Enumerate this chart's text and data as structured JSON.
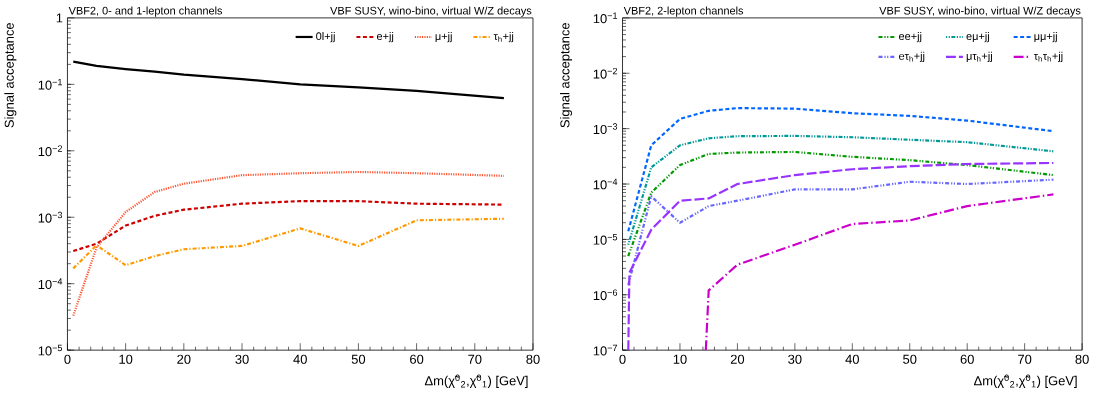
{
  "chart_data": [
    {
      "type": "line",
      "title": "VBF2, 0- and 1-lepton channels",
      "subtitle": "VBF SUSY, wino-bino, virtual W/Z decays",
      "xlabel": "Δm(χ̃$^{0}$$_{2}$,χ̃$^{0}$$_{1}$) [GeV]",
      "ylabel": "Signal acceptance",
      "log": "y",
      "legend": "top right",
      "xlim": [
        0,
        80
      ],
      "ylim": [
        1e-05,
        1
      ],
      "xticks": [
        0,
        10,
        20,
        30,
        40,
        50,
        60,
        70,
        80
      ],
      "yticks": [
        {
          "value": 1e-05,
          "label": "10$^{−5}$"
        },
        {
          "value": 0.0001,
          "label": "10$^{−4}$"
        },
        {
          "value": 0.001,
          "label": "10$^{−3}$"
        },
        {
          "value": 0.01,
          "label": "10$^{−2}$"
        },
        {
          "value": 0.1,
          "label": "10$^{−1}$"
        },
        1
      ],
      "x": [
        1,
        5,
        10,
        15,
        20,
        30,
        40,
        50,
        60,
        75
      ],
      "series": [
        {
          "name": "0l+jj",
          "color": "#000000",
          "line_style": "solid",
          "values": [
            0.22,
            0.19,
            0.17,
            0.155,
            0.14,
            0.12,
            0.1,
            0.09,
            0.08,
            0.062
          ]
        },
        {
          "name": "e+jj",
          "color": "#cc0000",
          "line_style": "dashed",
          "values": [
            0.00031,
            0.0004,
            0.00075,
            0.00105,
            0.0013,
            0.0016,
            0.00175,
            0.00175,
            0.0016,
            0.00155
          ]
        },
        {
          "name": "μ+jj",
          "color": "#ff5533",
          "line_style": "dotted",
          "values": [
            3.3e-05,
            0.00035,
            0.0012,
            0.0024,
            0.0032,
            0.0043,
            0.0046,
            0.0048,
            0.0046,
            0.0042
          ]
        },
        {
          "name": "τ$_{h}$+jj",
          "color": "#ff9900",
          "line_style": "dashdot",
          "values": [
            0.00017,
            0.00038,
            0.00019,
            0.00026,
            0.00033,
            0.00037,
            0.00068,
            0.00037,
            0.0009,
            0.00095
          ]
        }
      ]
    },
    {
      "type": "line",
      "title": "VBF2, 2-lepton channels",
      "subtitle": "VBF SUSY, wino-bino, virtual W/Z decays",
      "xlabel": "Δm(χ̃$^{0}$$_{2}$,χ̃$^{0}$$_{1}$) [GeV]",
      "ylabel": "Signal acceptance",
      "log": "y",
      "legend": "top right",
      "xlim": [
        0,
        80
      ],
      "ylim": [
        1e-07,
        0.1
      ],
      "xticks": [
        0,
        10,
        20,
        30,
        40,
        50,
        60,
        70,
        80
      ],
      "yticks": [
        {
          "value": 1e-07,
          "label": "10$^{−7}$"
        },
        {
          "value": 1e-06,
          "label": "10$^{−6}$"
        },
        {
          "value": 1e-05,
          "label": "10$^{−5}$"
        },
        {
          "value": 0.0001,
          "label": "10$^{−4}$"
        },
        {
          "value": 0.001,
          "label": "10$^{−3}$"
        },
        {
          "value": 0.01,
          "label": "10$^{−2}$"
        },
        {
          "value": 0.1,
          "label": "10$^{−1}$"
        }
      ],
      "x": [
        1,
        5,
        10,
        15,
        20,
        30,
        40,
        50,
        60,
        75
      ],
      "series": [
        {
          "name": "ee+jj",
          "color": "#009900",
          "line_style": "dashdotdot",
          "values": [
            5e-06,
            7e-05,
            0.00022,
            0.00035,
            0.00037,
            0.00038,
            0.00031,
            0.00027,
            0.00022,
            0.000145
          ]
        },
        {
          "name": "eμ+jj",
          "color": "#009999",
          "line_style": "dotdash",
          "values": [
            8e-06,
            0.0002,
            0.0005,
            0.00067,
            0.00073,
            0.00074,
            0.0007,
            0.00063,
            0.00057,
            0.00039
          ]
        },
        {
          "name": "μμ+jj",
          "color": "#0066ff",
          "line_style": "dashed",
          "values": [
            1.4e-05,
            0.0005,
            0.0015,
            0.0021,
            0.00235,
            0.0023,
            0.0019,
            0.0017,
            0.0014,
            0.0009
          ]
        },
        {
          "name": "eτ$_{h}$+jj",
          "color": "#6666ff",
          "line_style": "dashdotdot",
          "values": [
            1.5e-06,
            6e-05,
            2e-05,
            4e-05,
            5e-05,
            8e-05,
            8e-05,
            0.00011,
            0.0001,
            0.00012
          ]
        },
        {
          "name": "μτ$_{h}$+jj",
          "color": "#9933ff",
          "line_style": "longdash",
          "x": [
            1,
            1.2,
            5,
            10,
            15,
            20,
            30,
            40,
            50,
            60,
            75
          ],
          "values": [
            1e-07,
            2.5e-06,
            1.5e-05,
            5e-05,
            5.5e-05,
            0.0001,
            0.000145,
            0.000185,
            0.00021,
            0.00023,
            0.00024
          ]
        },
        {
          "name": "τ$_{h}$τ$_{h}$+jj",
          "color": "#cc00cc",
          "line_style": "longdashdot",
          "x": [
            14.5,
            15,
            20,
            30,
            40,
            50,
            60,
            75
          ],
          "values": [
            1e-07,
            1.2e-06,
            3.5e-06,
            8e-06,
            1.9e-05,
            2.2e-05,
            4e-05,
            6.5e-05
          ]
        }
      ]
    }
  ]
}
